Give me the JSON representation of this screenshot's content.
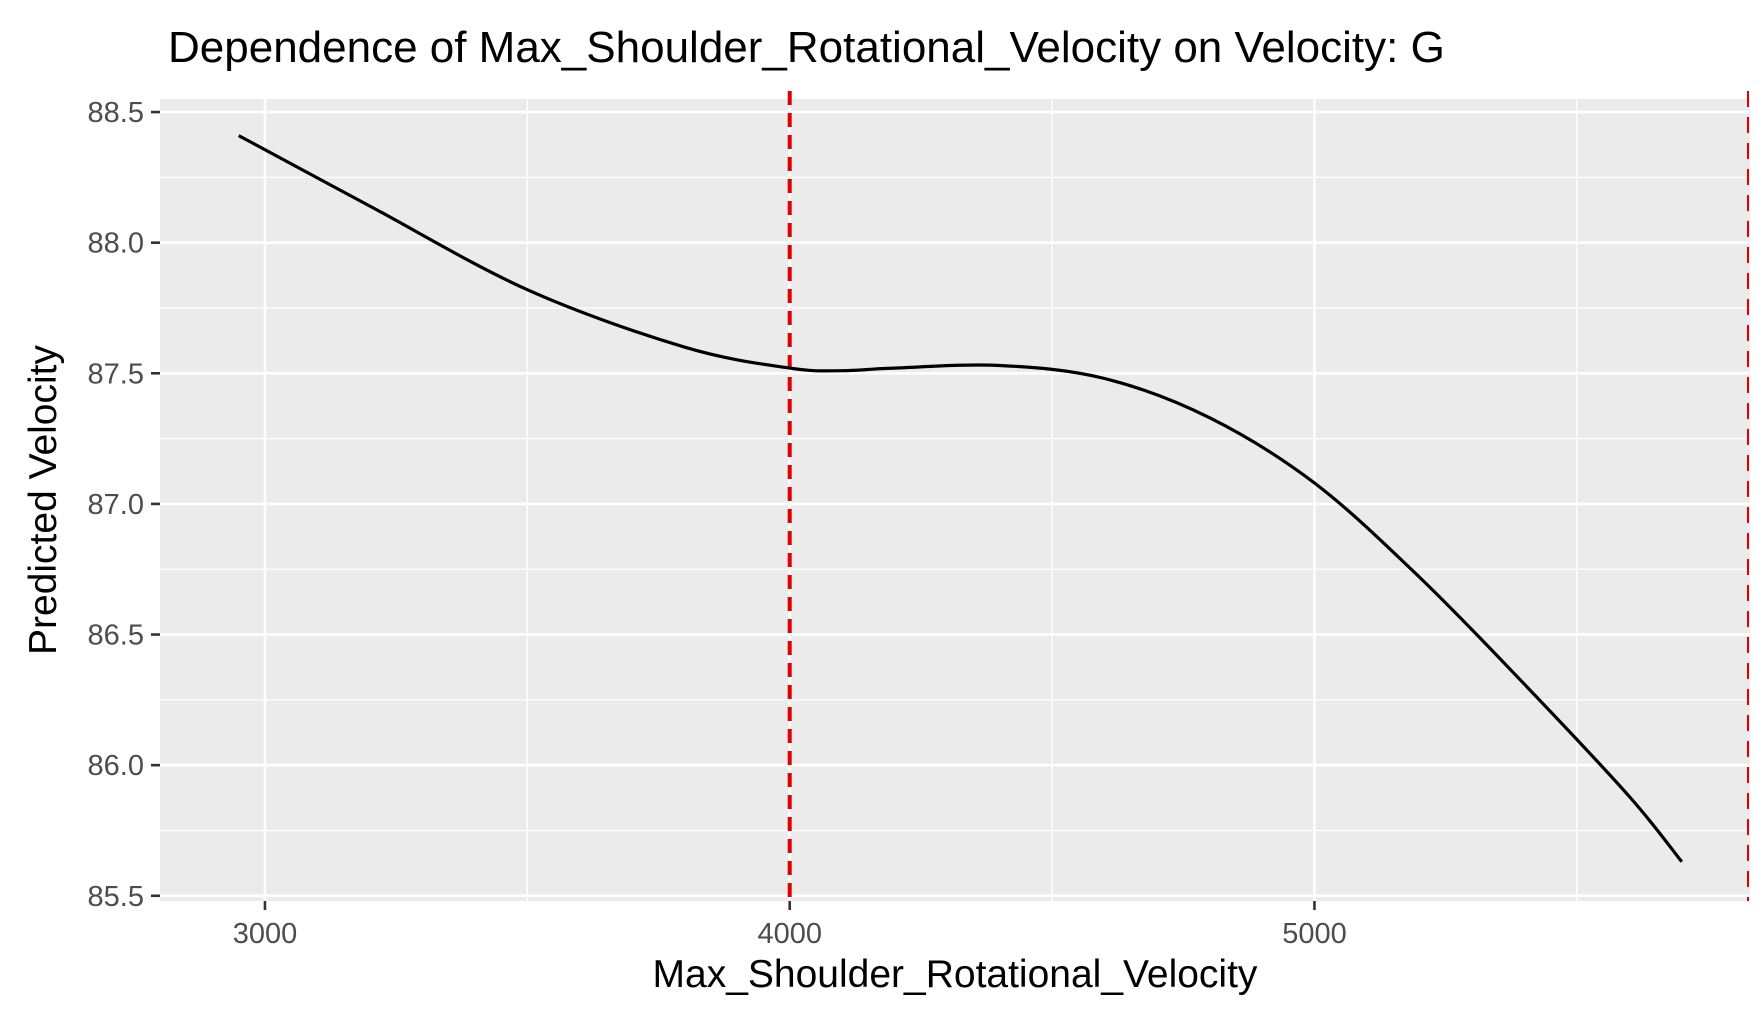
{
  "chart_data": {
    "type": "line",
    "title": "Dependence of Max_Shoulder_Rotational_Velocity on Velocity: G",
    "xlabel": "Max_Shoulder_Rotational_Velocity",
    "ylabel": "Predicted Velocity",
    "xlim": [
      2800,
      5830
    ],
    "ylim": [
      85.48,
      88.55
    ],
    "x_ticks": [
      3000,
      4000,
      5000
    ],
    "x_tick_labels": [
      "3000",
      "4000",
      "5000"
    ],
    "x_minor_ticks": [
      3500,
      4500,
      5500
    ],
    "y_ticks": [
      85.5,
      86.0,
      86.5,
      87.0,
      87.5,
      88.0,
      88.5
    ],
    "y_tick_labels": [
      "85.5",
      "86.0",
      "86.5",
      "87.0",
      "87.5",
      "88.0",
      "88.5"
    ],
    "y_minor_ticks": [
      85.75,
      86.25,
      86.75,
      87.25,
      87.75,
      88.25
    ],
    "grid": true,
    "legend": "none",
    "series": [
      {
        "color": "#000000",
        "x": [
          2950,
          3200,
          3500,
          3800,
          4000,
          4100,
          4200,
          4400,
          4600,
          4800,
          5000,
          5200,
          5400,
          5600,
          5700
        ],
        "y": [
          88.41,
          88.14,
          87.82,
          87.6,
          87.52,
          87.51,
          87.52,
          87.53,
          87.48,
          87.33,
          87.08,
          86.72,
          86.31,
          85.88,
          85.63
        ]
      }
    ],
    "vlines": [
      {
        "x": 4000,
        "color": "#e00000",
        "style": "dashed"
      },
      {
        "x": 5830,
        "color": "#e00000",
        "style": "dashed"
      }
    ]
  },
  "colors": {
    "panel_background": "#ebebeb",
    "gridline": "#ffffff",
    "reference_line": "#e00000",
    "curve": "#000000"
  }
}
